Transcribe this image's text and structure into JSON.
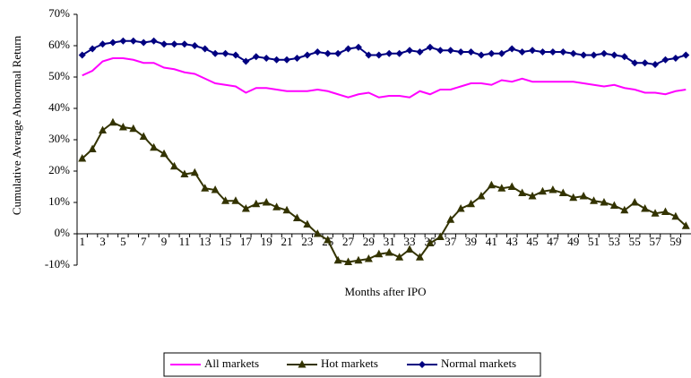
{
  "chart_data": {
    "type": "line",
    "y_label": "Cumulative Average Abnormal Return",
    "x_label": "Months after IPO",
    "categories": [
      1,
      null,
      3,
      null,
      5,
      null,
      7,
      null,
      9,
      null,
      11,
      null,
      13,
      null,
      15,
      null,
      17,
      null,
      19,
      null,
      21,
      null,
      23,
      null,
      25,
      null,
      27,
      null,
      29,
      null,
      31,
      null,
      33,
      null,
      35,
      null,
      37,
      null,
      39,
      null,
      41,
      null,
      43,
      null,
      45,
      null,
      47,
      null,
      49,
      null,
      51,
      null,
      53,
      null,
      55,
      null,
      57,
      null,
      59,
      null
    ],
    "ylim": [
      -10,
      70
    ],
    "yticks": [
      {
        "value": -10,
        "label": "-10%"
      },
      {
        "value": 0,
        "label": "0%"
      },
      {
        "value": 10,
        "label": "10%"
      },
      {
        "value": 20,
        "label": "20%"
      },
      {
        "value": 30,
        "label": "30%"
      },
      {
        "value": 40,
        "label": "40%"
      },
      {
        "value": 50,
        "label": "50%"
      },
      {
        "value": 60,
        "label": "60%"
      },
      {
        "value": 70,
        "label": "70%"
      }
    ],
    "legend": "bottom",
    "series": [
      {
        "name": "All markets",
        "color": "#ff00ff",
        "marker": "none",
        "values": [
          50.5,
          52,
          55,
          56,
          56,
          55.5,
          54.5,
          54.5,
          53,
          52.5,
          51.5,
          51,
          49.5,
          48,
          47.5,
          47,
          45,
          46.5,
          46.5,
          46,
          45.5,
          45.5,
          45.5,
          46,
          45.5,
          44.5,
          43.5,
          44.5,
          45,
          43.5,
          44,
          44,
          43.5,
          45.5,
          44.5,
          46,
          46,
          47,
          48,
          48,
          47.5,
          49,
          48.5,
          49.5,
          48.5,
          48.5,
          48.5,
          48.5,
          48.5,
          48,
          47.5,
          47,
          47.5,
          46.5,
          46,
          45,
          45,
          44.5,
          45.5,
          46
        ]
      },
      {
        "name": "Hot markets",
        "color": "#333300",
        "marker": "triangle",
        "values": [
          24,
          27,
          33,
          35.5,
          34,
          33.5,
          31,
          27.5,
          25.5,
          21.5,
          19,
          19.5,
          14.5,
          14,
          10.5,
          10.5,
          8,
          9.5,
          10,
          8.5,
          7.5,
          5,
          3,
          0,
          -2,
          -8.5,
          -9,
          -8.5,
          -8,
          -6.5,
          -6,
          -7.5,
          -5,
          -7.5,
          -3,
          -1,
          4.5,
          8,
          9.5,
          12,
          15.5,
          14.5,
          15,
          13,
          12,
          13.5,
          14,
          13,
          11.5,
          12,
          10.5,
          10,
          9,
          7.5,
          10,
          8,
          6.5,
          7,
          5.5,
          2.5
        ]
      },
      {
        "name": "Normal markets",
        "color": "#000080",
        "marker": "diamond",
        "values": [
          57,
          59,
          60.5,
          61,
          61.5,
          61.5,
          61,
          61.5,
          60.5,
          60.5,
          60.5,
          60,
          59,
          57.5,
          57.5,
          57,
          55,
          56.5,
          56,
          55.5,
          55.5,
          56,
          57,
          58,
          57.5,
          57.5,
          59,
          59.5,
          57,
          57,
          57.5,
          57.5,
          58.5,
          58,
          59.5,
          58.5,
          58.5,
          58,
          58,
          57,
          57.5,
          57.5,
          59,
          58,
          58.5,
          58,
          58,
          58,
          57.5,
          57,
          57,
          57.5,
          57,
          56.5,
          54.5,
          54.5,
          54,
          55.5,
          56,
          57
        ]
      }
    ]
  }
}
